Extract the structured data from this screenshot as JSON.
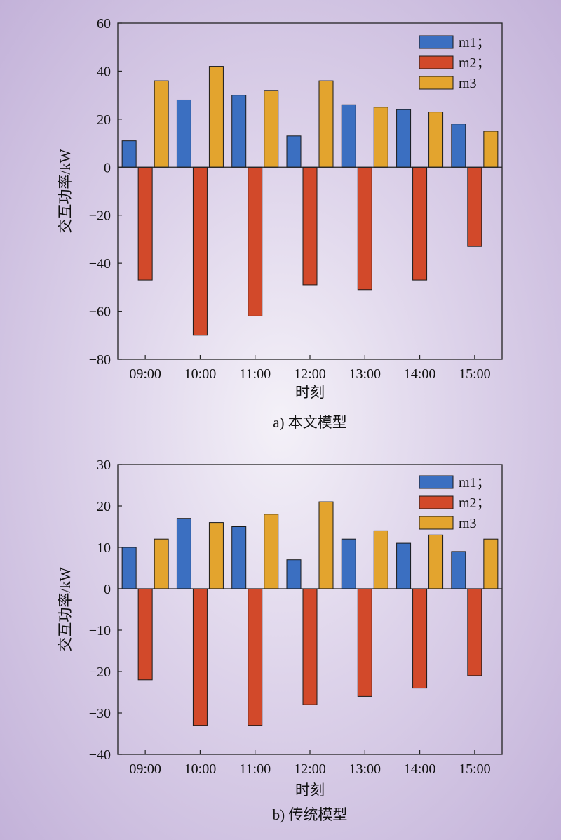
{
  "chart_data": [
    {
      "type": "bar",
      "caption": "a) 本文模型",
      "xlabel": "时刻",
      "ylabel": "交互功率/kW",
      "categories": [
        "09:00",
        "10:00",
        "11:00",
        "12:00",
        "13:00",
        "14:00",
        "15:00"
      ],
      "ylim": [
        -80,
        60
      ],
      "yticks": [
        60,
        40,
        20,
        0,
        -20,
        -40,
        -60,
        -80
      ],
      "ytick_labels": [
        "60",
        "40",
        "20",
        "0",
        "−20",
        "−40",
        "−60",
        "−80"
      ],
      "legend_position": "top-right",
      "series": [
        {
          "name": "m1；",
          "color": "#3b6fc1",
          "values": [
            11,
            28,
            30,
            13,
            26,
            24,
            18
          ]
        },
        {
          "name": "m2；",
          "color": "#d2492a",
          "values": [
            -47,
            -70,
            -62,
            -49,
            -51,
            -47,
            -33
          ]
        },
        {
          "name": "m3",
          "color": "#e3a42e",
          "values": [
            36,
            42,
            32,
            36,
            25,
            23,
            15
          ]
        }
      ]
    },
    {
      "type": "bar",
      "caption": "b) 传统模型",
      "xlabel": "时刻",
      "ylabel": "交互功率/kW",
      "categories": [
        "09:00",
        "10:00",
        "11:00",
        "12:00",
        "13:00",
        "14:00",
        "15:00"
      ],
      "ylim": [
        -40,
        30
      ],
      "yticks": [
        30,
        20,
        10,
        0,
        -10,
        -20,
        -30,
        -40
      ],
      "ytick_labels": [
        "30",
        "20",
        "10",
        "0",
        "−10",
        "−20",
        "−30",
        "−40"
      ],
      "legend_position": "top-right",
      "series": [
        {
          "name": "m1；",
          "color": "#3b6fc1",
          "values": [
            10,
            17,
            15,
            7,
            12,
            11,
            9
          ]
        },
        {
          "name": "m2；",
          "color": "#d2492a",
          "values": [
            -22,
            -33,
            -33,
            -28,
            -26,
            -24,
            -21
          ]
        },
        {
          "name": "m3",
          "color": "#e3a42e",
          "values": [
            12,
            16,
            18,
            21,
            14,
            13,
            12
          ]
        }
      ]
    }
  ]
}
